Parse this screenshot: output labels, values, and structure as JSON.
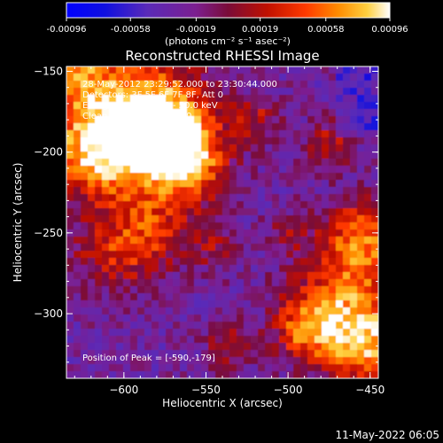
{
  "colorbar": {
    "tick_labels": [
      "-0.00096",
      "-0.00058",
      "-0.00019",
      "0.00019",
      "0.00058",
      "0.00096"
    ],
    "tick_values": [
      -0.00096,
      -0.00058,
      -0.00019,
      0.00019,
      0.00058,
      0.00096
    ],
    "range": [
      -0.00096,
      0.00096
    ],
    "units_label": "(photons cm⁻² s⁻¹ asec⁻²)"
  },
  "plot": {
    "title": "Reconstructed RHESSI Image",
    "xlabel": "Heliocentric X (arcsec)",
    "ylabel": "Heliocentric Y (arcsec)",
    "x_tick_labels": [
      "−600",
      "−550",
      "−500",
      "−450"
    ],
    "x_tick_values": [
      -600,
      -550,
      -500,
      -450
    ],
    "y_tick_labels": [
      "−150",
      "−200",
      "−250",
      "−300"
    ],
    "y_tick_values": [
      -150,
      -200,
      -250,
      -300
    ],
    "xlim": [
      -635,
      -445
    ],
    "ylim": [
      -340,
      -147
    ],
    "info_lines": [
      "28-May-2012 23:29:52.000 to 23:30:44.000",
      "Detectors: 3F 5F 6F 7F 8F, Att 0",
      "Energy Range: 25.0 - 50.0 keV",
      "Clean , Total counts: 780."
    ],
    "peak_label": "Position of Peak = [-590,-179]",
    "peak_position": [
      -590,
      -179
    ]
  },
  "footer": {
    "timestamp": "11-May-2022 06:05"
  },
  "colors": {
    "background": "#000000",
    "text": "#ffffff"
  }
}
